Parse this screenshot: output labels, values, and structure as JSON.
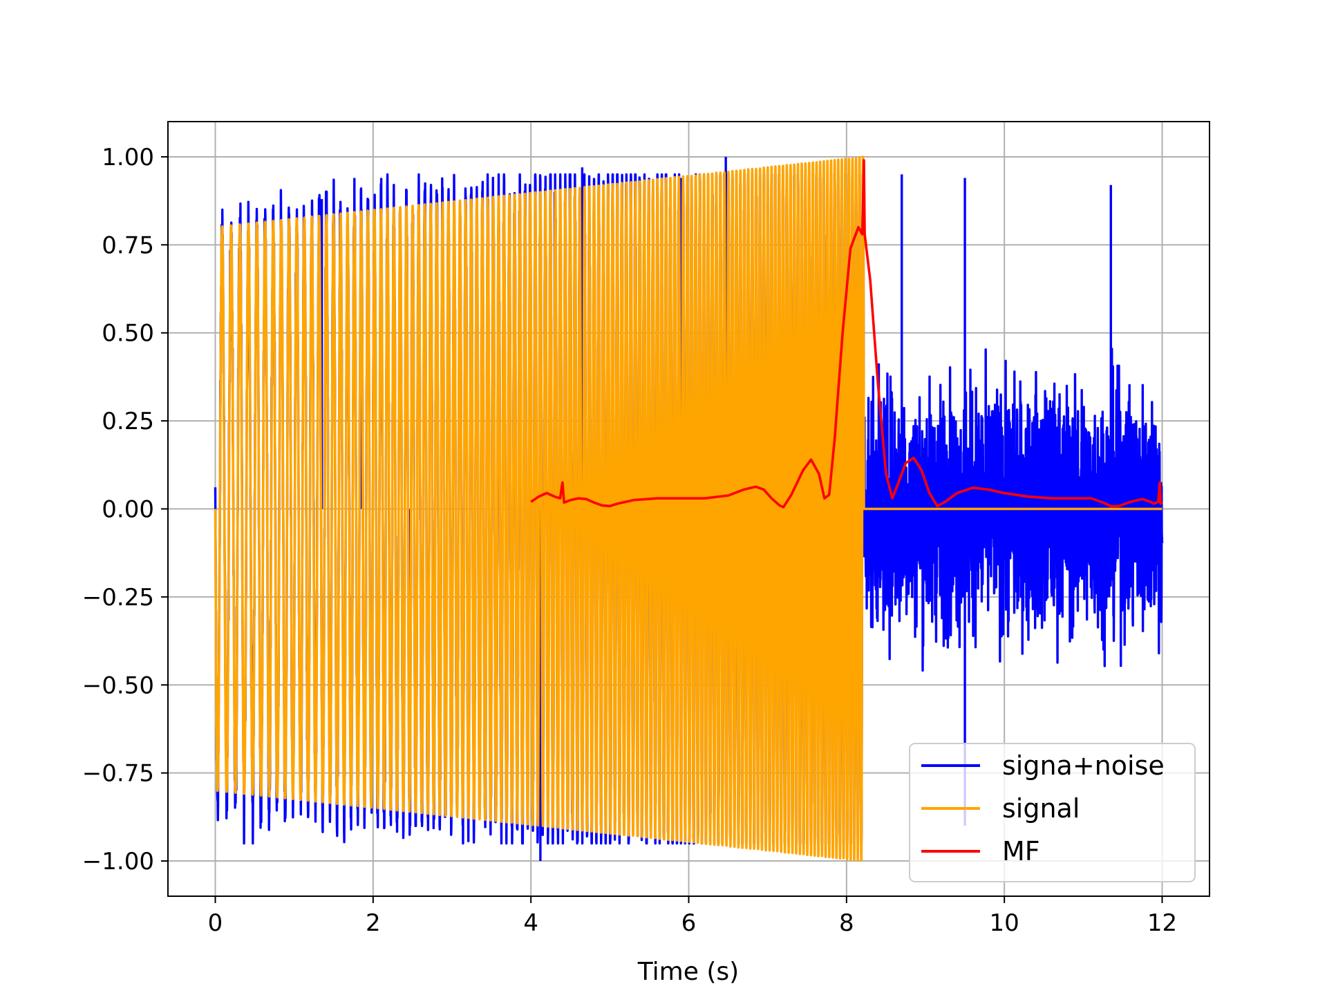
{
  "chart_data": {
    "type": "line",
    "title": "",
    "xlabel": "Time (s)",
    "ylabel": "",
    "xlim": [
      -0.6,
      12.6
    ],
    "ylim": [
      -1.1,
      1.1
    ],
    "grid": true,
    "legend_position": "lower-right",
    "x_ticks": [
      0,
      2,
      4,
      6,
      8,
      10,
      12
    ],
    "x_tick_labels": [
      "0",
      "2",
      "4",
      "6",
      "8",
      "10",
      "12"
    ],
    "y_ticks": [
      1.0,
      0.75,
      0.5,
      0.25,
      0.0,
      -0.25,
      -0.5,
      -0.75,
      -1.0
    ],
    "y_tick_labels": [
      "1.00",
      "0.75",
      "0.50",
      "0.25",
      "0.00",
      "−0.25",
      "−0.50",
      "−0.75",
      "−1.00"
    ],
    "series": [
      {
        "name": "signa+noise",
        "color": "#0000ff",
        "description": "chirp signal from 0 to ~8.22 s plus noise, noise only (amplitude up to ~0.95) from ~8.22 to 12 s",
        "x_range": [
          0,
          12
        ],
        "noise_peaks": [
          {
            "x": 1.35,
            "y": 0.88
          },
          {
            "x": 1.85,
            "y": 0.85
          },
          {
            "x": 2.47,
            "y": -0.9
          },
          {
            "x": 4.12,
            "y": -1.0
          },
          {
            "x": 4.3,
            "y": 0.9
          },
          {
            "x": 4.65,
            "y": 0.97
          },
          {
            "x": 5.9,
            "y": 0.94
          },
          {
            "x": 6.47,
            "y": 1.0
          },
          {
            "x": 8.7,
            "y": 0.95
          },
          {
            "x": 9.5,
            "y": 0.94
          },
          {
            "x": 9.5,
            "y": -0.9
          },
          {
            "x": 11.35,
            "y": 0.92
          }
        ]
      },
      {
        "name": "signal",
        "color": "#ffa500",
        "description": "linear chirp from t=0 to t=8.22 s with envelope growing from 0.8 to 1.0, zero afterwards",
        "start": 0,
        "end": 8.22,
        "amplitude_start": 0.8,
        "amplitude_end": 1.0,
        "cycles": 128,
        "zero_after": [
          8.22,
          12
        ]
      },
      {
        "name": "MF",
        "color": "#ff0000",
        "points": [
          [
            4.0,
            0.02
          ],
          [
            4.1,
            0.035
          ],
          [
            4.2,
            0.045
          ],
          [
            4.3,
            0.035
          ],
          [
            4.37,
            0.03
          ],
          [
            4.4,
            0.075
          ],
          [
            4.42,
            0.018
          ],
          [
            4.5,
            0.025
          ],
          [
            4.6,
            0.03
          ],
          [
            4.7,
            0.028
          ],
          [
            4.8,
            0.018
          ],
          [
            4.9,
            0.01
          ],
          [
            5.0,
            0.008
          ],
          [
            5.1,
            0.015
          ],
          [
            5.3,
            0.025
          ],
          [
            5.6,
            0.03
          ],
          [
            5.9,
            0.03
          ],
          [
            6.2,
            0.03
          ],
          [
            6.5,
            0.038
          ],
          [
            6.7,
            0.055
          ],
          [
            6.85,
            0.063
          ],
          [
            6.95,
            0.055
          ],
          [
            7.05,
            0.03
          ],
          [
            7.15,
            0.01
          ],
          [
            7.2,
            0.005
          ],
          [
            7.3,
            0.04
          ],
          [
            7.45,
            0.11
          ],
          [
            7.55,
            0.14
          ],
          [
            7.65,
            0.1
          ],
          [
            7.72,
            0.03
          ],
          [
            7.78,
            0.04
          ],
          [
            7.85,
            0.2
          ],
          [
            7.95,
            0.5
          ],
          [
            8.05,
            0.74
          ],
          [
            8.15,
            0.8
          ],
          [
            8.2,
            0.78
          ],
          [
            8.22,
            0.99
          ],
          [
            8.23,
            0.78
          ],
          [
            8.3,
            0.65
          ],
          [
            8.4,
            0.35
          ],
          [
            8.5,
            0.1
          ],
          [
            8.58,
            0.03
          ],
          [
            8.65,
            0.07
          ],
          [
            8.75,
            0.13
          ],
          [
            8.85,
            0.145
          ],
          [
            8.95,
            0.11
          ],
          [
            9.05,
            0.045
          ],
          [
            9.15,
            0.008
          ],
          [
            9.25,
            0.02
          ],
          [
            9.4,
            0.045
          ],
          [
            9.6,
            0.06
          ],
          [
            9.8,
            0.055
          ],
          [
            10.0,
            0.045
          ],
          [
            10.3,
            0.035
          ],
          [
            10.6,
            0.03
          ],
          [
            10.9,
            0.03
          ],
          [
            11.1,
            0.03
          ],
          [
            11.25,
            0.018
          ],
          [
            11.35,
            0.008
          ],
          [
            11.45,
            0.008
          ],
          [
            11.6,
            0.02
          ],
          [
            11.75,
            0.028
          ],
          [
            11.85,
            0.02
          ],
          [
            11.9,
            0.015
          ],
          [
            11.95,
            0.02
          ],
          [
            11.97,
            0.075
          ],
          [
            11.98,
            0.015
          ],
          [
            12.0,
            0.02
          ]
        ]
      }
    ]
  }
}
